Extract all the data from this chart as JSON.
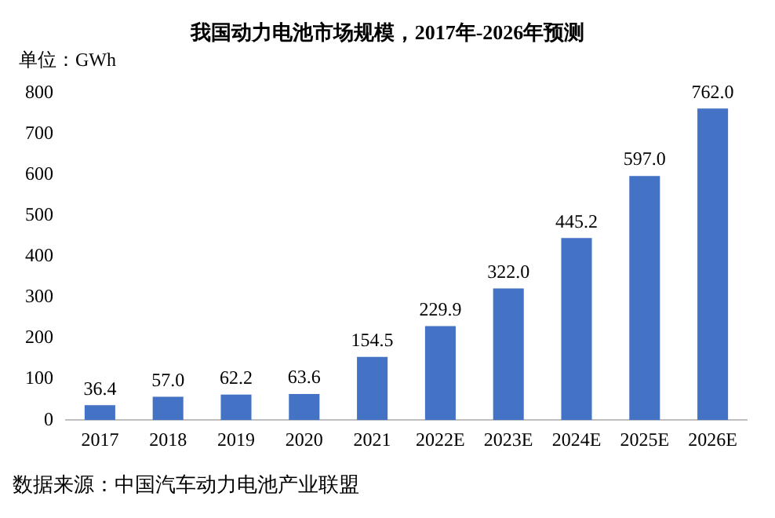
{
  "chart_data": {
    "type": "bar",
    "title": "我国动力电池市场规模，2017年-2026年预测",
    "ylabel": "单位：GWh",
    "categories": [
      "2017",
      "2018",
      "2019",
      "2020",
      "2021",
      "2022E",
      "2023E",
      "2024E",
      "2025E",
      "2026E"
    ],
    "values": [
      36.4,
      57.0,
      62.2,
      63.6,
      154.5,
      229.9,
      322.0,
      445.2,
      597.0,
      762.0
    ],
    "value_labels": [
      "36.4",
      "57.0",
      "62.2",
      "63.6",
      "154.5",
      "229.9",
      "322.0",
      "445.2",
      "597.0",
      "762.0"
    ],
    "color": "#4472c4",
    "ylim": [
      0,
      800
    ],
    "yticks": [
      0,
      100,
      200,
      300,
      400,
      500,
      600,
      700,
      800
    ],
    "grid": false,
    "annotations": [
      "数据来源：中国汽车动力电池产业联盟"
    ]
  }
}
